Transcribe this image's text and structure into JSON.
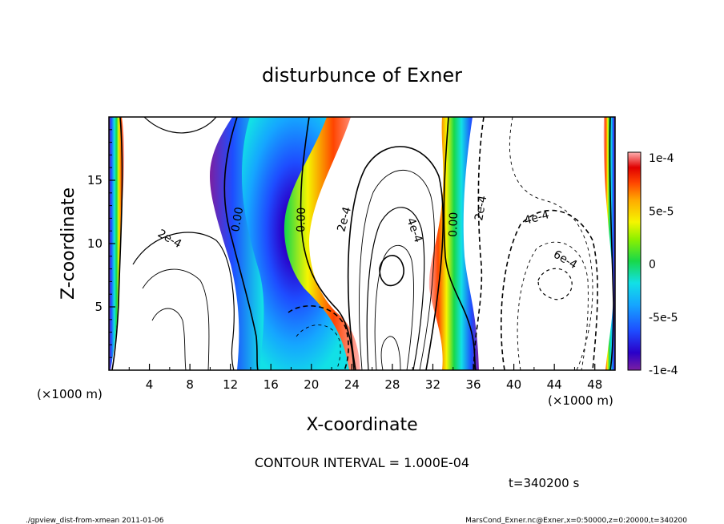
{
  "chart_data": {
    "type": "heatmap",
    "title": "disturbunce of Exner",
    "xlabel": "X-coordinate",
    "ylabel": "Z-coordinate",
    "x_unit": "(×1000 m)",
    "y_unit": "(×1000 m)",
    "xlim": [
      0,
      50
    ],
    "ylim": [
      0,
      20
    ],
    "x_ticks": [
      4,
      8,
      12,
      16,
      20,
      24,
      28,
      32,
      36,
      40,
      44,
      48
    ],
    "y_ticks": [
      5,
      10,
      15
    ],
    "colorbar": {
      "ticks": [
        "1e-4",
        "5e-5",
        "0",
        "-5e-5",
        "-1e-4"
      ],
      "values": [
        0.0001,
        5e-05,
        0,
        -5e-05,
        -0.0001
      ],
      "range": [
        -0.0001,
        0.0001
      ]
    },
    "contour_labels": [
      "2e-4",
      "0.00",
      "0.00",
      "2e-4",
      "4e-4",
      "0.00",
      "2e-4",
      "4e-4",
      "6e-4"
    ],
    "contour_interval_text": "CONTOUR INTERVAL = 1.000E-04",
    "time_text": "t=340200 s",
    "footer_left": "./gpview_dist-from-xmean  2011-01-06",
    "footer_right": "MarsCond_Exner.nc@Exner,x=0:50000,z=0:20000,t=340200"
  }
}
